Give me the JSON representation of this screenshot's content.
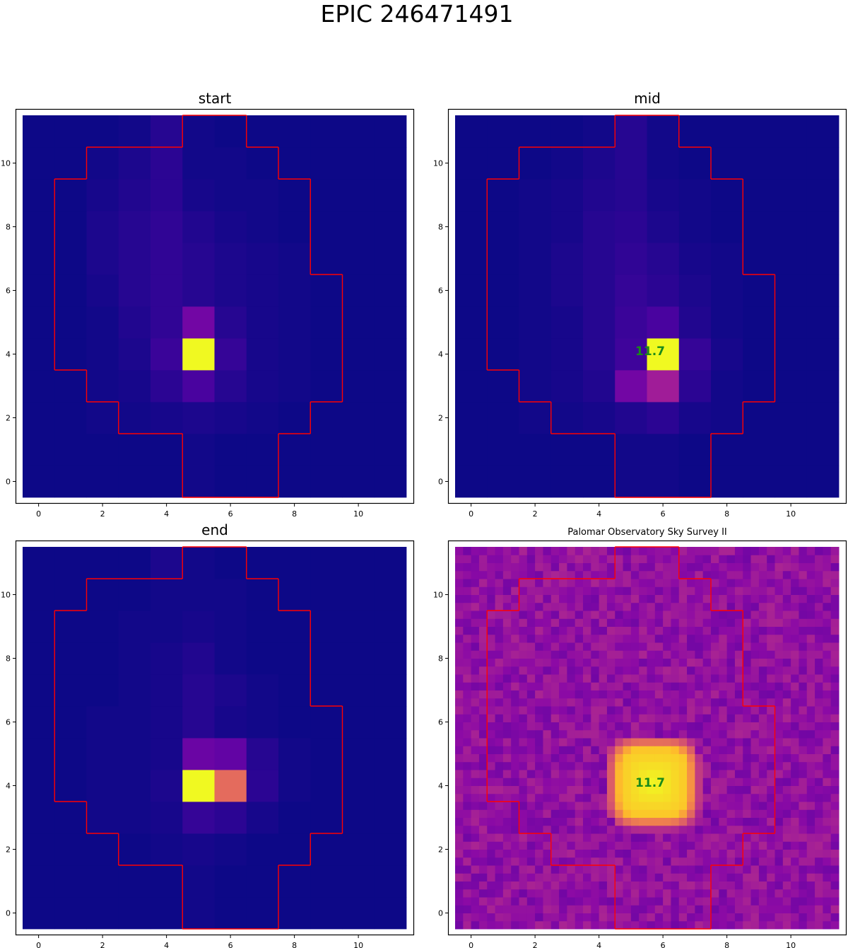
{
  "figure": {
    "title": "EPIC 246471491"
  },
  "chart_data": [
    {
      "type": "heatmap",
      "title": "start",
      "colormap": "plasma",
      "aperture_color": "#ff0000",
      "xticks": [
        "0",
        "2",
        "4",
        "6",
        "8",
        "10"
      ],
      "yticks": [
        "0",
        "2",
        "4",
        "6",
        "8",
        "10"
      ],
      "xlim": [
        -0.5,
        11.5
      ],
      "ylim": [
        -0.5,
        11.5
      ],
      "z": [
        [
          0.0,
          0.0,
          0.0,
          0.0,
          0.0,
          0.01,
          0.0,
          0.0,
          0.0,
          0.0,
          0.0,
          0.0
        ],
        [
          0.0,
          0.0,
          0.0,
          0.0,
          0.0,
          0.01,
          0.0,
          0.0,
          0.0,
          0.0,
          0.0,
          0.0
        ],
        [
          0.0,
          0.0,
          0.01,
          0.01,
          0.02,
          0.03,
          0.02,
          0.01,
          0.0,
          0.0,
          0.0,
          0.0
        ],
        [
          0.0,
          0.0,
          0.01,
          0.02,
          0.06,
          0.12,
          0.05,
          0.02,
          0.01,
          0.0,
          0.0,
          0.0
        ],
        [
          0.0,
          0.0,
          0.01,
          0.03,
          0.09,
          1.0,
          0.08,
          0.02,
          0.01,
          0.0,
          0.0,
          0.0
        ],
        [
          0.0,
          0.0,
          0.01,
          0.04,
          0.07,
          0.22,
          0.05,
          0.02,
          0.01,
          0.0,
          0.0,
          0.0
        ],
        [
          0.0,
          0.0,
          0.02,
          0.05,
          0.07,
          0.05,
          0.03,
          0.02,
          0.01,
          0.0,
          0.0,
          0.0
        ],
        [
          0.0,
          0.0,
          0.03,
          0.05,
          0.07,
          0.05,
          0.03,
          0.02,
          0.01,
          0.0,
          0.0,
          0.0
        ],
        [
          0.0,
          0.0,
          0.03,
          0.05,
          0.07,
          0.04,
          0.02,
          0.01,
          0.0,
          0.0,
          0.0,
          0.0
        ],
        [
          0.0,
          0.0,
          0.02,
          0.04,
          0.06,
          0.02,
          0.01,
          0.01,
          0.0,
          0.0,
          0.0,
          0.0
        ],
        [
          0.0,
          0.0,
          0.01,
          0.03,
          0.06,
          0.01,
          0.01,
          0.0,
          0.0,
          0.0,
          0.0,
          0.0
        ],
        [
          0.0,
          0.0,
          0.0,
          0.01,
          0.05,
          0.01,
          0.0,
          0.0,
          0.0,
          0.0,
          0.0,
          0.0
        ]
      ],
      "annotations": []
    },
    {
      "type": "heatmap",
      "title": "mid",
      "colormap": "plasma",
      "aperture_color": "#ff0000",
      "xticks": [
        "0",
        "2",
        "4",
        "6",
        "8",
        "10"
      ],
      "yticks": [
        "0",
        "2",
        "4",
        "6",
        "8",
        "10"
      ],
      "xlim": [
        -0.5,
        11.5
      ],
      "ylim": [
        -0.5,
        11.5
      ],
      "z": [
        [
          0.0,
          0.0,
          0.0,
          0.0,
          0.0,
          0.01,
          0.01,
          0.0,
          0.0,
          0.0,
          0.0,
          0.0
        ],
        [
          0.0,
          0.0,
          0.0,
          0.0,
          0.0,
          0.01,
          0.01,
          0.0,
          0.0,
          0.0,
          0.0,
          0.0
        ],
        [
          0.0,
          0.0,
          0.01,
          0.01,
          0.02,
          0.04,
          0.06,
          0.02,
          0.01,
          0.0,
          0.0,
          0.0
        ],
        [
          0.0,
          0.0,
          0.01,
          0.02,
          0.04,
          0.22,
          0.35,
          0.06,
          0.01,
          0.0,
          0.0,
          0.0
        ],
        [
          0.0,
          0.0,
          0.01,
          0.02,
          0.05,
          0.1,
          1.0,
          0.08,
          0.02,
          0.0,
          0.0,
          0.0
        ],
        [
          0.0,
          0.0,
          0.01,
          0.02,
          0.05,
          0.09,
          0.12,
          0.04,
          0.01,
          0.0,
          0.0,
          0.0
        ],
        [
          0.0,
          0.0,
          0.01,
          0.03,
          0.05,
          0.08,
          0.06,
          0.03,
          0.01,
          0.0,
          0.0,
          0.0
        ],
        [
          0.0,
          0.0,
          0.01,
          0.03,
          0.05,
          0.07,
          0.05,
          0.02,
          0.01,
          0.0,
          0.0,
          0.0
        ],
        [
          0.0,
          0.0,
          0.01,
          0.02,
          0.05,
          0.06,
          0.03,
          0.01,
          0.0,
          0.0,
          0.0,
          0.0
        ],
        [
          0.0,
          0.0,
          0.01,
          0.02,
          0.04,
          0.05,
          0.02,
          0.01,
          0.0,
          0.0,
          0.0,
          0.0
        ],
        [
          0.0,
          0.0,
          0.0,
          0.01,
          0.03,
          0.05,
          0.01,
          0.0,
          0.0,
          0.0,
          0.0,
          0.0
        ],
        [
          0.0,
          0.0,
          0.0,
          0.0,
          0.01,
          0.05,
          0.01,
          0.0,
          0.0,
          0.0,
          0.0,
          0.0
        ]
      ],
      "annotations": [
        {
          "text": "11.7",
          "x": 5.6,
          "y": 4.1
        }
      ]
    },
    {
      "type": "heatmap",
      "title": "end",
      "colormap": "plasma",
      "aperture_color": "#ff0000",
      "xticks": [
        "0",
        "2",
        "4",
        "6",
        "8",
        "10"
      ],
      "yticks": [
        "0",
        "2",
        "4",
        "6",
        "8",
        "10"
      ],
      "xlim": [
        -0.5,
        11.5
      ],
      "ylim": [
        -0.5,
        11.5
      ],
      "z": [
        [
          0.0,
          0.0,
          0.0,
          0.0,
          0.0,
          0.01,
          0.0,
          0.0,
          0.0,
          0.0,
          0.0,
          0.0
        ],
        [
          0.0,
          0.0,
          0.0,
          0.0,
          0.0,
          0.01,
          0.0,
          0.0,
          0.0,
          0.0,
          0.0,
          0.0
        ],
        [
          0.0,
          0.0,
          0.0,
          0.0,
          0.01,
          0.02,
          0.01,
          0.0,
          0.0,
          0.0,
          0.0,
          0.0
        ],
        [
          0.0,
          0.0,
          0.01,
          0.01,
          0.02,
          0.08,
          0.06,
          0.02,
          0.0,
          0.0,
          0.0,
          0.0
        ],
        [
          0.0,
          0.0,
          0.01,
          0.01,
          0.03,
          1.0,
          0.62,
          0.06,
          0.01,
          0.0,
          0.0,
          0.0
        ],
        [
          0.0,
          0.0,
          0.01,
          0.01,
          0.02,
          0.2,
          0.18,
          0.05,
          0.01,
          0.0,
          0.0,
          0.0
        ],
        [
          0.0,
          0.0,
          0.01,
          0.01,
          0.02,
          0.05,
          0.02,
          0.01,
          0.0,
          0.0,
          0.0,
          0.0
        ],
        [
          0.0,
          0.0,
          0.0,
          0.01,
          0.02,
          0.05,
          0.03,
          0.01,
          0.0,
          0.0,
          0.0,
          0.0
        ],
        [
          0.0,
          0.0,
          0.0,
          0.01,
          0.02,
          0.04,
          0.01,
          0.0,
          0.0,
          0.0,
          0.0,
          0.0
        ],
        [
          0.0,
          0.0,
          0.0,
          0.01,
          0.01,
          0.02,
          0.01,
          0.0,
          0.0,
          0.0,
          0.0,
          0.0
        ],
        [
          0.0,
          0.0,
          0.0,
          0.0,
          0.01,
          0.01,
          0.01,
          0.0,
          0.0,
          0.0,
          0.0,
          0.0
        ],
        [
          0.0,
          0.0,
          0.0,
          0.0,
          0.03,
          0.01,
          0.0,
          0.0,
          0.0,
          0.0,
          0.0,
          0.0
        ]
      ],
      "annotations": []
    },
    {
      "type": "heatmap",
      "title": "Palomar Observatory Sky Survey II",
      "colormap": "plasma",
      "aperture_color": "#ff0000",
      "xticks": [
        "0",
        "2",
        "4",
        "6",
        "8",
        "10"
      ],
      "yticks": [
        "0",
        "2",
        "4",
        "6",
        "8",
        "10"
      ],
      "xlim": [
        -0.5,
        11.5
      ],
      "ylim": [
        -0.5,
        11.5
      ],
      "image": {
        "source_x": 5.7,
        "source_y": 4.1,
        "source_halfwidth": 1.05,
        "background_level": 0.3
      },
      "annotations": [
        {
          "text": "11.7",
          "x": 5.6,
          "y": 4.1
        }
      ]
    }
  ],
  "aperture": {
    "rows": [
      {
        "y": 0,
        "x0": 5,
        "x1": 7
      },
      {
        "y": 1,
        "x0": 5,
        "x1": 7
      },
      {
        "y": 2,
        "x0": 3,
        "x1": 8
      },
      {
        "y": 3,
        "x0": 2,
        "x1": 9
      },
      {
        "y": 4,
        "x0": 1,
        "x1": 9
      },
      {
        "y": 5,
        "x0": 1,
        "x1": 9
      },
      {
        "y": 6,
        "x0": 1,
        "x1": 9
      },
      {
        "y": 7,
        "x0": 1,
        "x1": 8
      },
      {
        "y": 8,
        "x0": 1,
        "x1": 8
      },
      {
        "y": 9,
        "x0": 1,
        "x1": 8
      },
      {
        "y": 10,
        "x0": 2,
        "x1": 7
      },
      {
        "y": 11,
        "x0": 5,
        "x1": 6
      }
    ]
  }
}
